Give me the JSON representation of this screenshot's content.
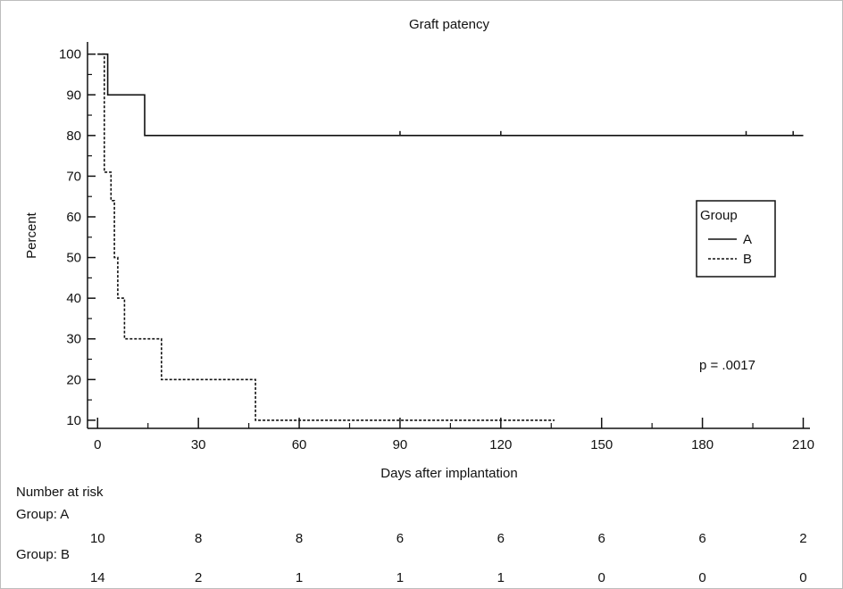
{
  "chart_data": {
    "type": "line",
    "style": "step",
    "title": "Graft patency",
    "xlabel": "Days after implantation",
    "ylabel": "Percent",
    "xlim": [
      -3,
      212
    ],
    "ylim": [
      8,
      103
    ],
    "x_ticks": [
      0,
      30,
      60,
      90,
      120,
      150,
      180,
      210
    ],
    "x_tick_labels": [
      "0",
      "30",
      "60",
      "90",
      "120",
      "150",
      "180",
      "210"
    ],
    "y_ticks": [
      10,
      20,
      30,
      40,
      50,
      60,
      70,
      80,
      90,
      100
    ],
    "y_tick_labels": [
      "10",
      "20",
      "30",
      "40",
      "50",
      "60",
      "70",
      "80",
      "90",
      "100"
    ],
    "grid": false,
    "legend": {
      "title": "Group",
      "placement": "right",
      "entries": [
        "A",
        "B"
      ]
    },
    "annotations": [
      {
        "text": "p = .0017"
      }
    ],
    "series": [
      {
        "name": "A",
        "line_style": "solid",
        "color": "#111111",
        "x": [
          0,
          3,
          3,
          14,
          14,
          210
        ],
        "y": [
          100,
          100,
          90,
          90,
          80,
          80
        ],
        "censor_x": [
          90,
          120,
          193,
          207
        ]
      },
      {
        "name": "B",
        "line_style": "dashed",
        "color": "#111111",
        "x": [
          0,
          2,
          2,
          4,
          4,
          5,
          5,
          6,
          6,
          8,
          8,
          19,
          19,
          47,
          47,
          136
        ],
        "y": [
          100,
          100,
          71,
          71,
          64,
          64,
          50,
          50,
          40,
          40,
          30,
          30,
          20,
          20,
          10,
          10
        ]
      }
    ],
    "risk_table": {
      "header": "Number at risk",
      "groups": [
        {
          "label": "Group: A",
          "values": [
            "10",
            "8",
            "8",
            "6",
            "6",
            "6",
            "6",
            "2"
          ]
        },
        {
          "label": "Group: B",
          "values": [
            "14",
            "2",
            "1",
            "1",
            "1",
            "0",
            "0",
            "0"
          ]
        }
      ]
    }
  }
}
